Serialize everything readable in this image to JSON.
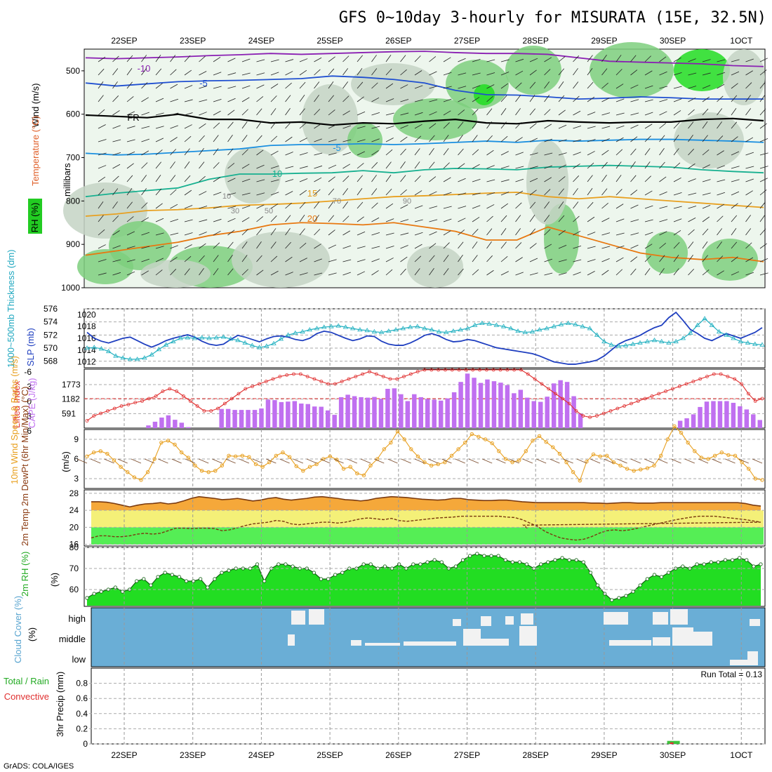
{
  "title": "GFS 0~10day 3-hourly for MISURATA (15E, 32.5N)",
  "footer": "GrADS: COLA/IGES",
  "run_total": "Run Total = 0.13",
  "dates": [
    "22SEP",
    "23SEP",
    "24SEP",
    "25SEP",
    "26SEP",
    "27SEP",
    "28SEP",
    "29SEP",
    "30SEP",
    "1OCT"
  ],
  "colors": {
    "rh_light": "#e8f3e8",
    "rh_mid": "#c4d4c4",
    "rh_dark": "#7ecf7e",
    "rh_bright": "#22dd22",
    "cloud": "#6aaed6",
    "precip_green": "#3cc43c",
    "precip_red": "#e03030"
  },
  "chart_data": [
    {
      "type": "heatmap",
      "name": "upper-air",
      "ylabel": "millibars",
      "left_labels": [
        "Wind (m/s)",
        "Temperature (°C)",
        "RH (%)"
      ],
      "ylim": [
        1000,
        450
      ],
      "yticks": [
        500,
        600,
        700,
        800,
        900,
        1000
      ],
      "contour_labels": [
        "-10",
        "-5",
        "FR",
        "-5",
        "10",
        "15",
        "20"
      ],
      "rh_labels": [
        "10",
        "30",
        "50",
        "70",
        "90"
      ],
      "isotherms": [
        {
          "label": "-10",
          "color": "#8a1fb3",
          "p": [
            470,
            472,
            470,
            468,
            465,
            463,
            460,
            462,
            460,
            458,
            456,
            455,
            458,
            460,
            460,
            462,
            470,
            478,
            480,
            482,
            484,
            488,
            490
          ]
        },
        {
          "label": "-5",
          "color": "#1f4fd1",
          "p": [
            528,
            535,
            530,
            525,
            523,
            522,
            520,
            518,
            512,
            515,
            520,
            528,
            545,
            555,
            556,
            560,
            565,
            563,
            560,
            562,
            565,
            565,
            565
          ]
        },
        {
          "label": "FR",
          "color": "#000000",
          "p": [
            602,
            605,
            608,
            600,
            612,
            612,
            620,
            618,
            625,
            620,
            622,
            616,
            612,
            620,
            622,
            615,
            618,
            620,
            618,
            618,
            612,
            610,
            615
          ]
        },
        {
          "label": "-5",
          "color": "#1a8fe0",
          "p": [
            690,
            694,
            692,
            688,
            684,
            680,
            672,
            670,
            670,
            668,
            670,
            668,
            665,
            662,
            665,
            660,
            662,
            660,
            658,
            658,
            660,
            662,
            665
          ]
        },
        {
          "label": "10",
          "color": "#17b090",
          "p": [
            790,
            782,
            776,
            770,
            750,
            738,
            738,
            736,
            735,
            730,
            735,
            728,
            725,
            726,
            728,
            722,
            720,
            718,
            720,
            722,
            728,
            732,
            735
          ]
        },
        {
          "label": "15",
          "color": "#e8a020",
          "p": [
            835,
            830,
            822,
            820,
            816,
            810,
            808,
            805,
            800,
            795,
            790,
            788,
            785,
            782,
            780,
            790,
            795,
            790,
            795,
            800,
            805,
            810,
            815
          ]
        },
        {
          "label": "20",
          "color": "#e87810",
          "p": [
            925,
            915,
            905,
            895,
            880,
            870,
            855,
            850,
            852,
            855,
            850,
            860,
            870,
            890,
            890,
            860,
            880,
            900,
            920,
            930,
            935,
            930,
            940
          ]
        }
      ]
    },
    {
      "type": "line",
      "name": "thickness-slp",
      "ylabel_left": "1000~500mb Thickness (dm)",
      "ylabel_right": "SLP (mb)",
      "yticks_left": [
        568,
        570,
        572,
        574,
        576
      ],
      "yticks_right": [
        1012,
        1014,
        1016,
        1018,
        1020
      ],
      "ylim_left": [
        567,
        576
      ],
      "series": [
        {
          "color": "#20b0c0",
          "values": [
            570.0,
            570.1,
            569.9,
            569.5,
            568.8,
            568.5,
            568.3,
            568.3,
            568.5,
            569.0,
            569.8,
            570.5,
            571.0,
            571.5,
            571.6,
            571.5,
            571.6,
            571.5,
            571.6,
            571.7,
            571.4,
            571.2,
            570.8,
            570.4,
            570.1,
            570.3,
            570.7,
            571.4,
            572.0,
            572.3,
            572.5,
            572.8,
            573.0,
            573.2,
            573.3,
            573.4,
            573.2,
            573.0,
            572.8,
            572.7,
            572.5,
            572.4,
            572.6,
            572.8,
            573.0,
            573.2,
            573.3,
            573.0,
            572.8,
            572.5,
            572.4,
            572.6,
            572.8,
            573.0,
            573.5,
            573.8,
            573.7,
            573.5,
            573.3,
            573.0,
            572.6,
            572.4,
            572.5,
            572.8,
            573.0,
            573.3,
            573.6,
            573.8,
            573.6,
            573.3,
            573.0,
            572.0,
            571.0,
            570.5,
            570.3,
            570.4,
            570.6,
            570.8,
            571.0,
            571.2,
            571.0,
            570.8,
            571.0,
            571.5,
            572.3,
            573.5,
            574.5,
            573.5,
            572.5,
            572.0,
            571.5,
            571.0,
            570.8,
            570.6,
            570.5
          ]
        },
        {
          "color": "#1f3fc0",
          "values": [
            1017.0,
            1016.0,
            1015.5,
            1015.2,
            1015.6,
            1016.0,
            1016.2,
            1015.6,
            1015.0,
            1014.5,
            1015.0,
            1015.6,
            1016.0,
            1016.3,
            1016.6,
            1016.2,
            1015.5,
            1015.0,
            1014.8,
            1015.0,
            1015.8,
            1016.5,
            1016.2,
            1015.8,
            1015.4,
            1015.9,
            1016.3,
            1016.4,
            1016.2,
            1015.8,
            1015.6,
            1016.0,
            1016.8,
            1017.2,
            1017.0,
            1016.5,
            1016.0,
            1015.6,
            1015.9,
            1016.4,
            1016.3,
            1015.5,
            1015.0,
            1014.8,
            1014.8,
            1015.2,
            1015.8,
            1016.5,
            1016.8,
            1016.4,
            1015.8,
            1015.4,
            1015.5,
            1015.8,
            1015.6,
            1015.2,
            1014.8,
            1014.4,
            1014.2,
            1014.0,
            1013.8,
            1013.6,
            1013.4,
            1013.0,
            1012.5,
            1012.0,
            1011.8,
            1011.6,
            1011.6,
            1011.8,
            1012.0,
            1012.3,
            1013.0,
            1014.0,
            1015.0,
            1015.6,
            1016.0,
            1016.5,
            1017.2,
            1017.8,
            1018.2,
            1019.5,
            1020.4,
            1019.0,
            1017.5,
            1016.8,
            1016.0,
            1015.6,
            1016.2,
            1016.8,
            1016.4,
            1016.0,
            1016.5,
            1017.0,
            1017.8
          ]
        }
      ]
    },
    {
      "type": "bar",
      "name": "cape-lifted-index",
      "ylabel_left": "Lifted Index",
      "ylabel_right": "CAPE (J/kg)",
      "yticks_left": [
        "-6",
        "-3",
        "0",
        "3",
        "6"
      ],
      "yticks_right": [
        591,
        1182,
        1773
      ],
      "ylim_right": [
        0,
        2400
      ],
      "cape": [
        0,
        0,
        0,
        0,
        0,
        0,
        0,
        0,
        0,
        110,
        260,
        430,
        520,
        340,
        220,
        40,
        0,
        0,
        0,
        0,
        780,
        780,
        740,
        740,
        740,
        740,
        800,
        1160,
        1140,
        1060,
        1080,
        1100,
        1000,
        980,
        880,
        870,
        720,
        540,
        1260,
        1360,
        1300,
        1260,
        1240,
        1270,
        1190,
        1600,
        1620,
        1380,
        1100,
        1380,
        1260,
        1190,
        1160,
        1120,
        1210,
        1460,
        1880,
        2220,
        2050,
        1840,
        1980,
        1910,
        1850,
        1750,
        1420,
        1560,
        1240,
        1100,
        1070,
        1280,
        1820,
        1950,
        1880,
        1300,
        590,
        0,
        0,
        0,
        0,
        0,
        0,
        0,
        0,
        0,
        0,
        0,
        0,
        0,
        0,
        300,
        400,
        560,
        860,
        1080,
        1100,
        1100,
        1100,
        1030,
        890,
        760,
        560,
        330
      ],
      "lifted_index": [
        4.5,
        3.5,
        3.0,
        2.5,
        2.0,
        1.5,
        1.2,
        0.8,
        0.5,
        0.0,
        -0.5,
        -1.5,
        -2.0,
        -1.5,
        -0.5,
        0.5,
        1.5,
        2.5,
        2.5,
        2.0,
        1.0,
        0.0,
        -1.0,
        -2.0,
        -2.5,
        -3.0,
        -3.5,
        -4.0,
        -4.5,
        -4.8,
        -5.0,
        -5.0,
        -4.5,
        -4.0,
        -3.5,
        -3.0,
        -3.0,
        -3.5,
        -4.0,
        -4.5,
        -5.0,
        -5.5,
        -5.0,
        -4.5,
        -4.0,
        -4.0,
        -4.5,
        -5.0,
        -5.5,
        -6.0,
        -6.0,
        -6.0,
        -6.0,
        -6.0,
        -6.0,
        -6.0,
        -6.0,
        -6.0,
        -6.0,
        -6.0,
        -6.0,
        -6.0,
        -6.0,
        -6.0,
        -5.0,
        -4.0,
        -3.0,
        -2.0,
        -1.0,
        0.0,
        1.0,
        2.5,
        3.5,
        3.8,
        3.5,
        3.0,
        2.5,
        2.0,
        1.5,
        1.0,
        0.5,
        0.0,
        -0.5,
        -1.0,
        -1.5,
        -2.0,
        -2.5,
        -3.0,
        -3.5,
        -4.0,
        -4.5,
        -5.0,
        -5.0,
        -4.5,
        -4.0,
        -3.0,
        -1.0,
        0.5,
        0.0
      ]
    },
    {
      "type": "line",
      "name": "10m-wind",
      "ylabel": "10m Wind Speed & Barbs (m/s)",
      "yticks": [
        3,
        6,
        9
      ],
      "ylim": [
        1.5,
        10.5
      ],
      "values": [
        6.4,
        7.0,
        7.2,
        6.8,
        5.8,
        4.8,
        4.0,
        3.2,
        2.8,
        4.0,
        6.0,
        8.5,
        8.8,
        8.2,
        7.0,
        6.2,
        5.0,
        4.2,
        4.0,
        4.2,
        5.0,
        6.5,
        6.4,
        6.5,
        6.3,
        5.2,
        4.8,
        5.5,
        6.5,
        7.0,
        6.3,
        4.9,
        4.2,
        4.8,
        5.2,
        6.0,
        6.4,
        5.9,
        4.5,
        4.8,
        3.8,
        3.5,
        5.0,
        6.0,
        7.5,
        8.5,
        10.2,
        9.0,
        7.5,
        6.4,
        5.5,
        5.0,
        5.2,
        5.5,
        6.5,
        7.5,
        8.5,
        9.8,
        9.4,
        9.0,
        8.4,
        7.2,
        6.0,
        5.5,
        5.8,
        7.2,
        8.8,
        9.5,
        8.6,
        7.8,
        6.8,
        5.5,
        4.0,
        2.7,
        5.6,
        6.7,
        6.4,
        6.5,
        5.5,
        5.0,
        4.5,
        4.2,
        4.4,
        4.6,
        5.0,
        6.5,
        9.0,
        11.0,
        10.0,
        8.5,
        7.2,
        6.2,
        6.0,
        6.5,
        7.0,
        6.6,
        6.5,
        5.5,
        4.5,
        3.0,
        2.8
      ]
    },
    {
      "type": "area",
      "name": "2m-temp-dewpoint",
      "ylabel": "2m Temp 2m DewPt (6hr Min/Max) (°C)",
      "yticks": [
        16,
        20,
        24,
        28
      ],
      "ylim": [
        15.6,
        28.8
      ],
      "temp": [
        26.0,
        26.0,
        25.9,
        25.6,
        25.2,
        24.8,
        25.2,
        25.5,
        25.6,
        25.8,
        25.5,
        25.7,
        26.2,
        26.8,
        27.2,
        27.0,
        26.8,
        26.5,
        26.6,
        26.8,
        26.5,
        26.2,
        26.4,
        26.8,
        27.0,
        26.6,
        26.4,
        26.6,
        26.8,
        27.1,
        27.2,
        27.0,
        26.8,
        26.5,
        26.4,
        26.2,
        26.4,
        26.8,
        27.0,
        27.2,
        27.1,
        27.0,
        26.8,
        26.6,
        26.5,
        26.4,
        26.5,
        26.8,
        26.8,
        26.5,
        26.4,
        26.3,
        26.3,
        26.4,
        26.4,
        26.2,
        26.0,
        25.9,
        25.8,
        25.8,
        25.8,
        25.8,
        25.8,
        25.8,
        25.8,
        25.7,
        25.7,
        25.6,
        25.7,
        25.8,
        25.8,
        25.7,
        25.7,
        25.7,
        25.8,
        25.8,
        25.8,
        25.8,
        25.8,
        25.8,
        25.8,
        25.8,
        25.8,
        25.8,
        25.8,
        25.6,
        25.2,
        25.0
      ],
      "dewpoint": [
        17.5,
        18.0,
        18.0,
        17.8,
        17.8,
        18.0,
        18.4,
        18.6,
        18.4,
        18.6,
        19.2,
        19.8,
        19.8,
        19.7,
        19.8,
        19.8,
        19.7,
        19.2,
        19.4,
        19.9,
        20.4,
        20.8,
        21.0,
        21.2,
        21.6,
        21.4,
        20.8,
        20.6,
        20.8,
        21.0,
        21.2,
        21.2,
        21.0,
        21.2,
        21.6,
        22.0,
        22.2,
        22.0,
        21.8,
        22.1,
        21.6,
        21.4,
        21.6,
        21.8,
        22.0,
        22.2,
        22.3,
        22.4,
        22.6,
        22.6,
        22.6,
        22.6,
        22.6,
        22.6,
        22.4,
        22.3,
        21.8,
        21.0,
        20.2,
        19.0,
        18.2,
        17.5,
        17.2,
        17.0,
        17.2,
        17.8,
        18.6,
        19.2,
        19.4,
        19.2,
        19.4,
        19.8,
        20.2,
        20.6,
        21.0,
        21.4,
        21.8,
        22.1,
        22.4,
        22.6,
        22.6,
        22.6,
        22.4,
        22.2,
        22.0,
        21.8,
        21.5,
        21.2,
        20.9,
        20.5,
        20.0,
        19.8
      ]
    },
    {
      "type": "area",
      "name": "2m-rh",
      "ylabel": "2m RH (%)",
      "yticks": [
        60,
        70,
        80
      ],
      "ylim": [
        52,
        80
      ],
      "values": [
        56,
        58,
        59,
        60,
        61,
        59,
        60,
        64,
        65,
        62,
        66,
        68,
        67,
        66,
        64,
        64,
        65,
        61,
        65,
        68,
        69,
        70,
        70,
        70,
        72,
        64,
        70,
        72,
        72,
        71,
        70,
        70,
        68,
        65,
        65,
        67,
        68,
        70,
        70,
        72,
        72,
        70,
        71,
        70,
        72,
        70,
        72,
        72,
        73,
        74,
        73,
        70,
        71,
        74,
        76,
        77,
        76,
        76,
        76,
        74,
        73,
        73,
        72,
        70,
        72,
        73,
        74,
        75,
        74,
        74,
        73,
        68,
        62,
        58,
        55,
        56,
        57,
        59,
        62,
        65,
        67,
        66,
        68,
        70,
        71,
        70,
        72,
        72,
        73,
        73,
        74,
        74,
        75,
        74,
        71,
        72
      ]
    },
    {
      "type": "area",
      "name": "cloud-cover",
      "ylabel": "Cloud Cover (%)",
      "ytick_labels": [
        "high",
        "middle",
        "low"
      ]
    },
    {
      "type": "bar",
      "name": "3hr-precip",
      "ylabel": "3hr Precip (mm)",
      "series_labels": [
        "Total / Rain",
        "Convective"
      ],
      "yticks": [
        "0",
        "0.2",
        "0.4",
        "0.6",
        "0.8"
      ],
      "ylim": [
        0,
        1.0
      ],
      "events": [
        {
          "date": "30SEP",
          "total": 0.04,
          "convective": 0.02
        }
      ]
    }
  ]
}
